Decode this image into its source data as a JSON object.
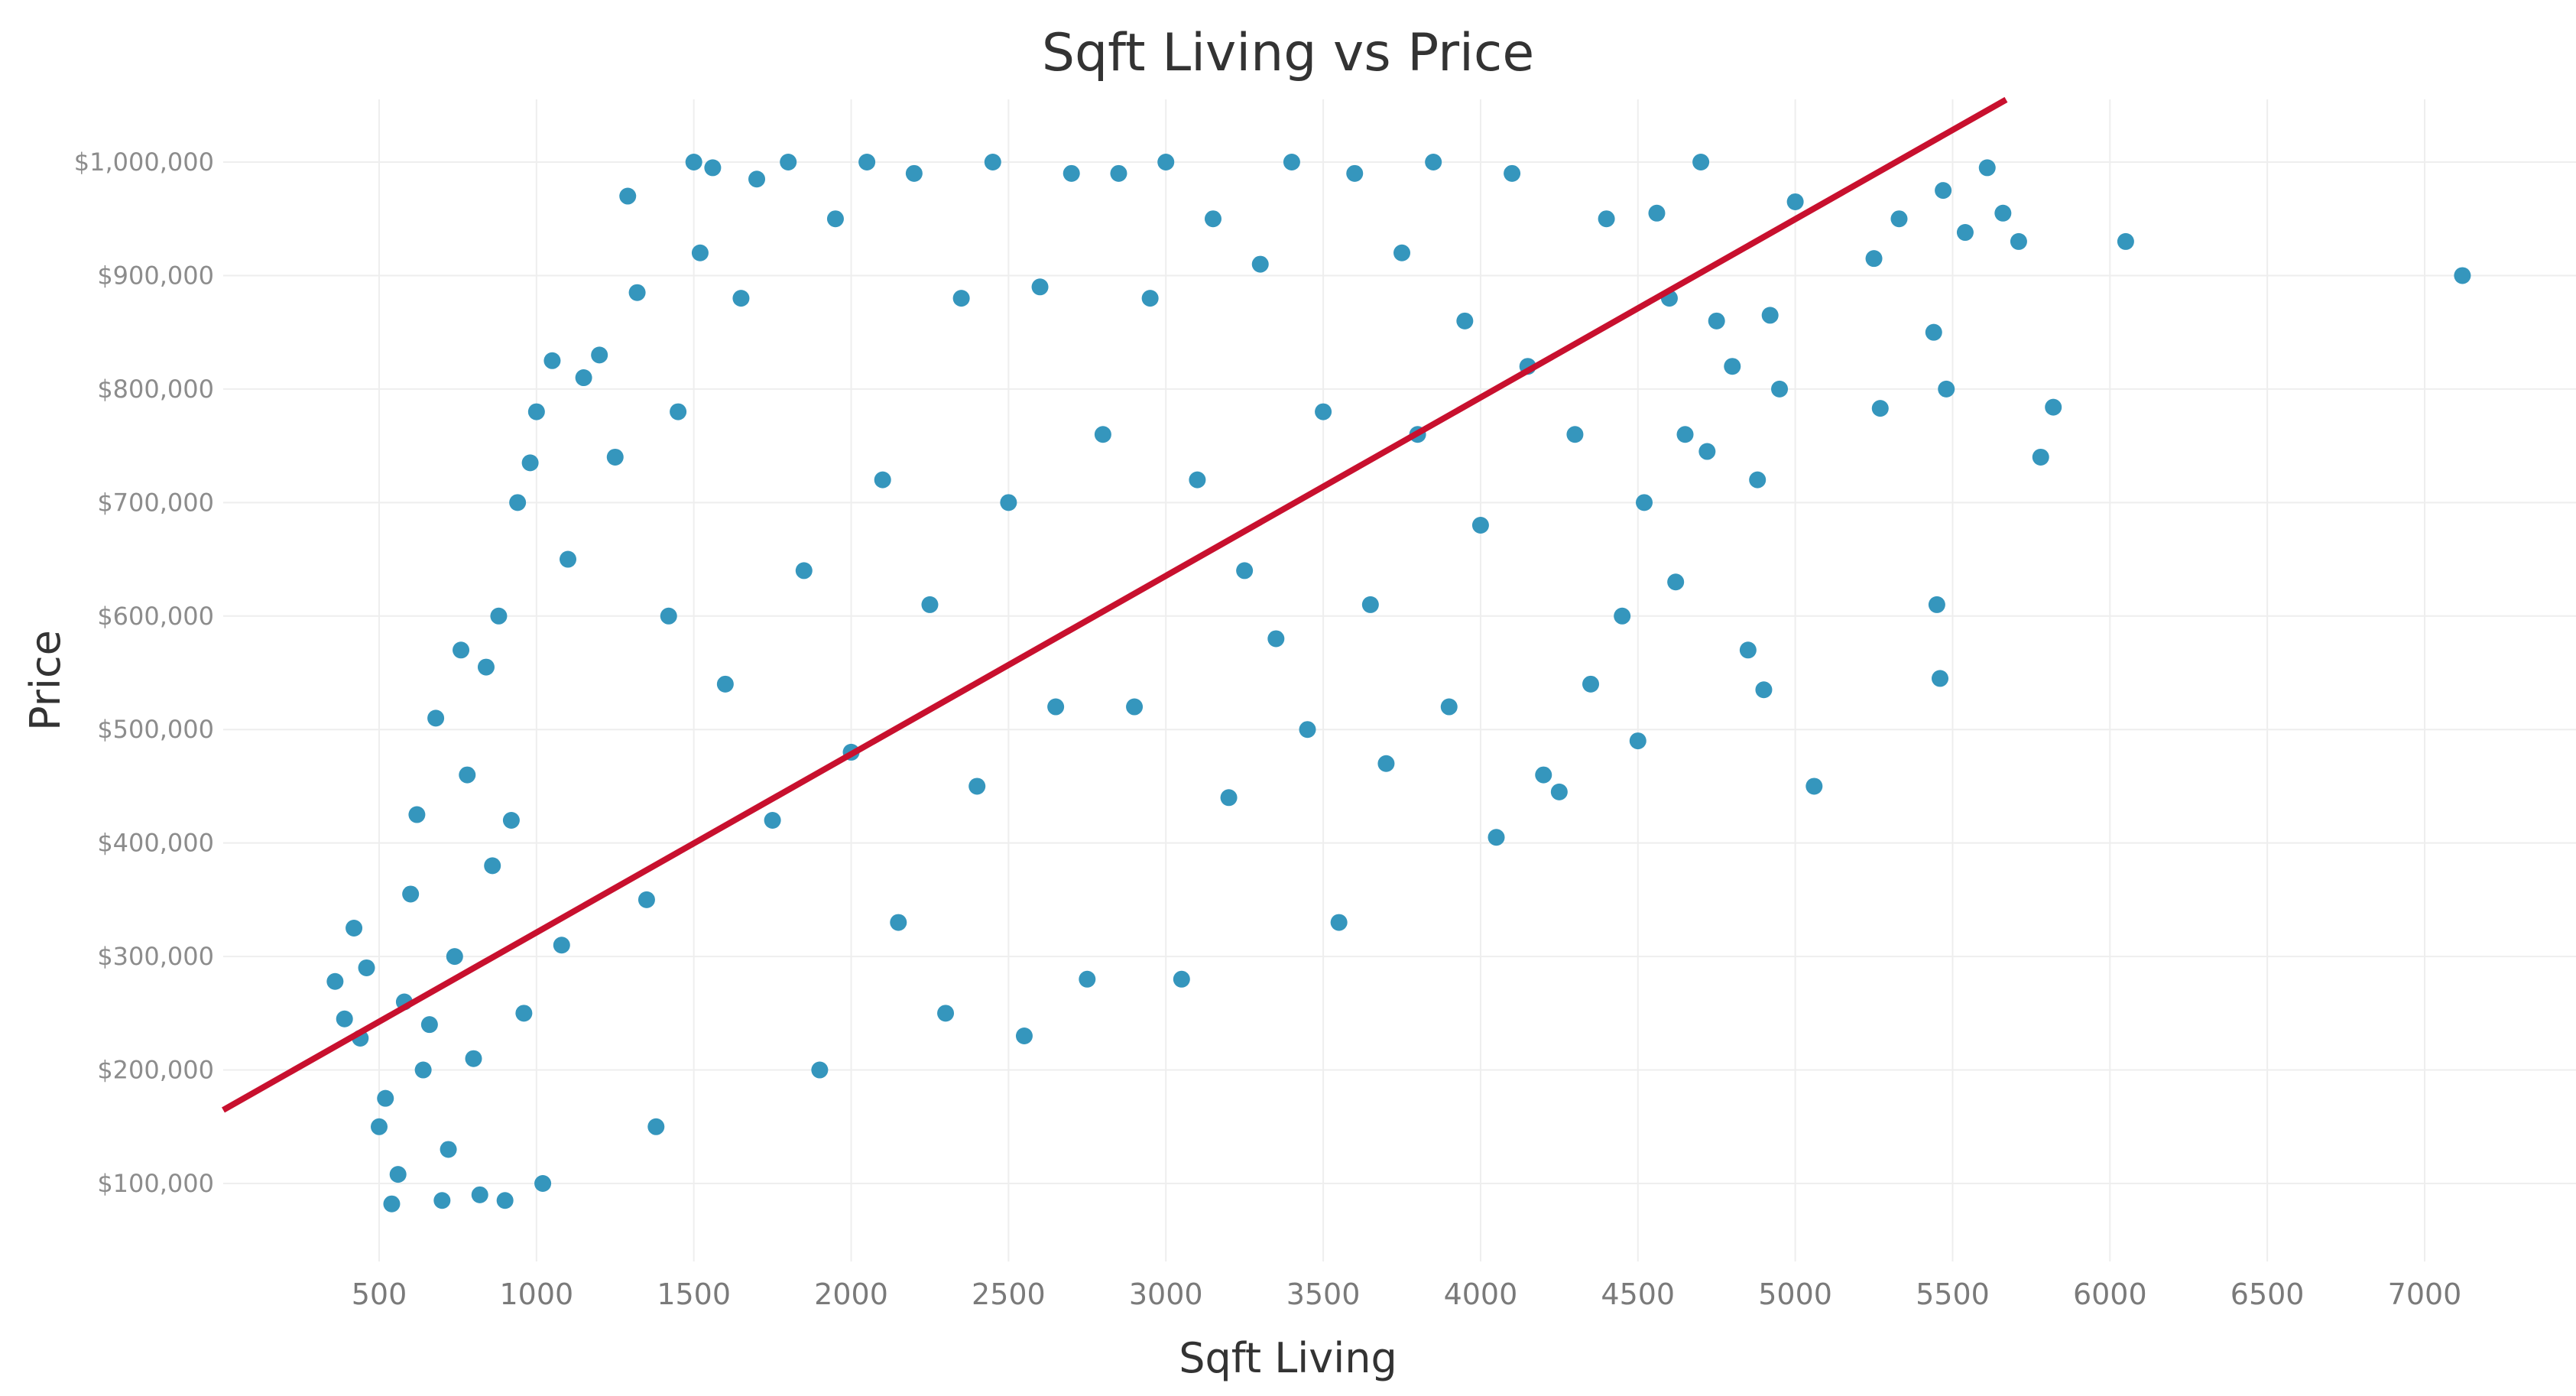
{
  "chart_data": {
    "type": "scatter",
    "title": "Sqft Living vs Price",
    "xlabel": "Sqft Living",
    "ylabel": "Price",
    "xlim": [
      0,
      7500
    ],
    "ylim": [
      30000,
      1055000
    ],
    "x_ticks": [
      500,
      1000,
      1500,
      2000,
      2500,
      3000,
      3500,
      4000,
      4500,
      5000,
      5500,
      6000,
      6500,
      7000
    ],
    "x_tick_labels": [
      "500",
      "1000",
      "1500",
      "2000",
      "2500",
      "3000",
      "3500",
      "4000",
      "4500",
      "5000",
      "5500",
      "6000",
      "6500",
      "7000"
    ],
    "y_ticks": [
      100000,
      200000,
      300000,
      400000,
      500000,
      600000,
      700000,
      800000,
      900000,
      1000000
    ],
    "y_tick_labels": [
      "$100,000",
      "$200,000",
      "$300,000",
      "$400,000",
      "$500,000",
      "$600,000",
      "$700,000",
      "$800,000",
      "$900,000",
      "$1,000,000"
    ],
    "grid": true,
    "point_color": "#3596bd",
    "trend_line_color": "#c8102e",
    "trend_line": {
      "points": [
        [
          0,
          164000
        ],
        [
          5670,
          1055000
        ]
      ]
    },
    "series": [
      {
        "values_note_x": "sqft",
        "points": [
          [
            360,
            278000
          ],
          [
            390,
            245000
          ],
          [
            420,
            325000
          ],
          [
            440,
            228000
          ],
          [
            460,
            290000
          ],
          [
            500,
            150000
          ],
          [
            520,
            175000
          ],
          [
            540,
            82000
          ],
          [
            560,
            108000
          ],
          [
            580,
            260000
          ],
          [
            600,
            355000
          ],
          [
            620,
            425000
          ],
          [
            640,
            200000
          ],
          [
            660,
            240000
          ],
          [
            680,
            510000
          ],
          [
            700,
            85000
          ],
          [
            720,
            130000
          ],
          [
            740,
            300000
          ],
          [
            760,
            570000
          ],
          [
            780,
            460000
          ],
          [
            800,
            210000
          ],
          [
            820,
            90000
          ],
          [
            840,
            555000
          ],
          [
            860,
            380000
          ],
          [
            880,
            600000
          ],
          [
            900,
            85000
          ],
          [
            920,
            420000
          ],
          [
            940,
            700000
          ],
          [
            960,
            250000
          ],
          [
            980,
            735000
          ],
          [
            1000,
            780000
          ],
          [
            1020,
            100000
          ],
          [
            1050,
            825000
          ],
          [
            1080,
            310000
          ],
          [
            1100,
            650000
          ],
          [
            1150,
            810000
          ],
          [
            1200,
            830000
          ],
          [
            1250,
            740000
          ],
          [
            1290,
            970000
          ],
          [
            1320,
            885000
          ],
          [
            1350,
            350000
          ],
          [
            1380,
            150000
          ],
          [
            1420,
            600000
          ],
          [
            1450,
            780000
          ],
          [
            1500,
            1000000
          ],
          [
            1520,
            920000
          ],
          [
            1560,
            995000
          ],
          [
            1600,
            540000
          ],
          [
            1650,
            880000
          ],
          [
            1700,
            985000
          ],
          [
            1750,
            420000
          ],
          [
            1800,
            1000000
          ],
          [
            1850,
            640000
          ],
          [
            1900,
            200000
          ],
          [
            1950,
            950000
          ],
          [
            2000,
            480000
          ],
          [
            2050,
            1000000
          ],
          [
            2100,
            720000
          ],
          [
            2150,
            330000
          ],
          [
            2200,
            990000
          ],
          [
            2250,
            610000
          ],
          [
            2300,
            250000
          ],
          [
            2350,
            880000
          ],
          [
            2400,
            450000
          ],
          [
            2450,
            1000000
          ],
          [
            2500,
            700000
          ],
          [
            2550,
            230000
          ],
          [
            2600,
            890000
          ],
          [
            2650,
            520000
          ],
          [
            2700,
            990000
          ],
          [
            2750,
            280000
          ],
          [
            2800,
            760000
          ],
          [
            2850,
            990000
          ],
          [
            2900,
            520000
          ],
          [
            2950,
            880000
          ],
          [
            3000,
            1000000
          ],
          [
            3050,
            280000
          ],
          [
            3100,
            720000
          ],
          [
            3150,
            950000
          ],
          [
            3200,
            440000
          ],
          [
            3250,
            640000
          ],
          [
            3300,
            910000
          ],
          [
            3350,
            580000
          ],
          [
            3400,
            1000000
          ],
          [
            3450,
            500000
          ],
          [
            3500,
            780000
          ],
          [
            3550,
            330000
          ],
          [
            3600,
            990000
          ],
          [
            3650,
            610000
          ],
          [
            3700,
            470000
          ],
          [
            3750,
            920000
          ],
          [
            3800,
            760000
          ],
          [
            3850,
            1000000
          ],
          [
            3900,
            520000
          ],
          [
            3950,
            860000
          ],
          [
            4000,
            680000
          ],
          [
            4050,
            405000
          ],
          [
            4100,
            990000
          ],
          [
            4150,
            820000
          ],
          [
            4200,
            460000
          ],
          [
            4250,
            445000
          ],
          [
            4300,
            760000
          ],
          [
            4350,
            540000
          ],
          [
            4400,
            950000
          ],
          [
            4450,
            600000
          ],
          [
            4500,
            490000
          ],
          [
            4520,
            700000
          ],
          [
            4560,
            955000
          ],
          [
            4600,
            880000
          ],
          [
            4620,
            630000
          ],
          [
            4650,
            760000
          ],
          [
            4700,
            1000000
          ],
          [
            4720,
            745000
          ],
          [
            4750,
            860000
          ],
          [
            4800,
            820000
          ],
          [
            4850,
            570000
          ],
          [
            4880,
            720000
          ],
          [
            4900,
            535000
          ],
          [
            4920,
            865000
          ],
          [
            4950,
            800000
          ],
          [
            5000,
            965000
          ],
          [
            5060,
            450000
          ],
          [
            5250,
            915000
          ],
          [
            5270,
            783000
          ],
          [
            5330,
            950000
          ],
          [
            5440,
            850000
          ],
          [
            5450,
            610000
          ],
          [
            5460,
            545000
          ],
          [
            5470,
            975000
          ],
          [
            5480,
            800000
          ],
          [
            5540,
            938000
          ],
          [
            5610,
            995000
          ],
          [
            5660,
            955000
          ],
          [
            5710,
            930000
          ],
          [
            5780,
            740000
          ],
          [
            5820,
            784000
          ],
          [
            6050,
            930000
          ],
          [
            7120,
            900000
          ]
        ]
      }
    ]
  }
}
